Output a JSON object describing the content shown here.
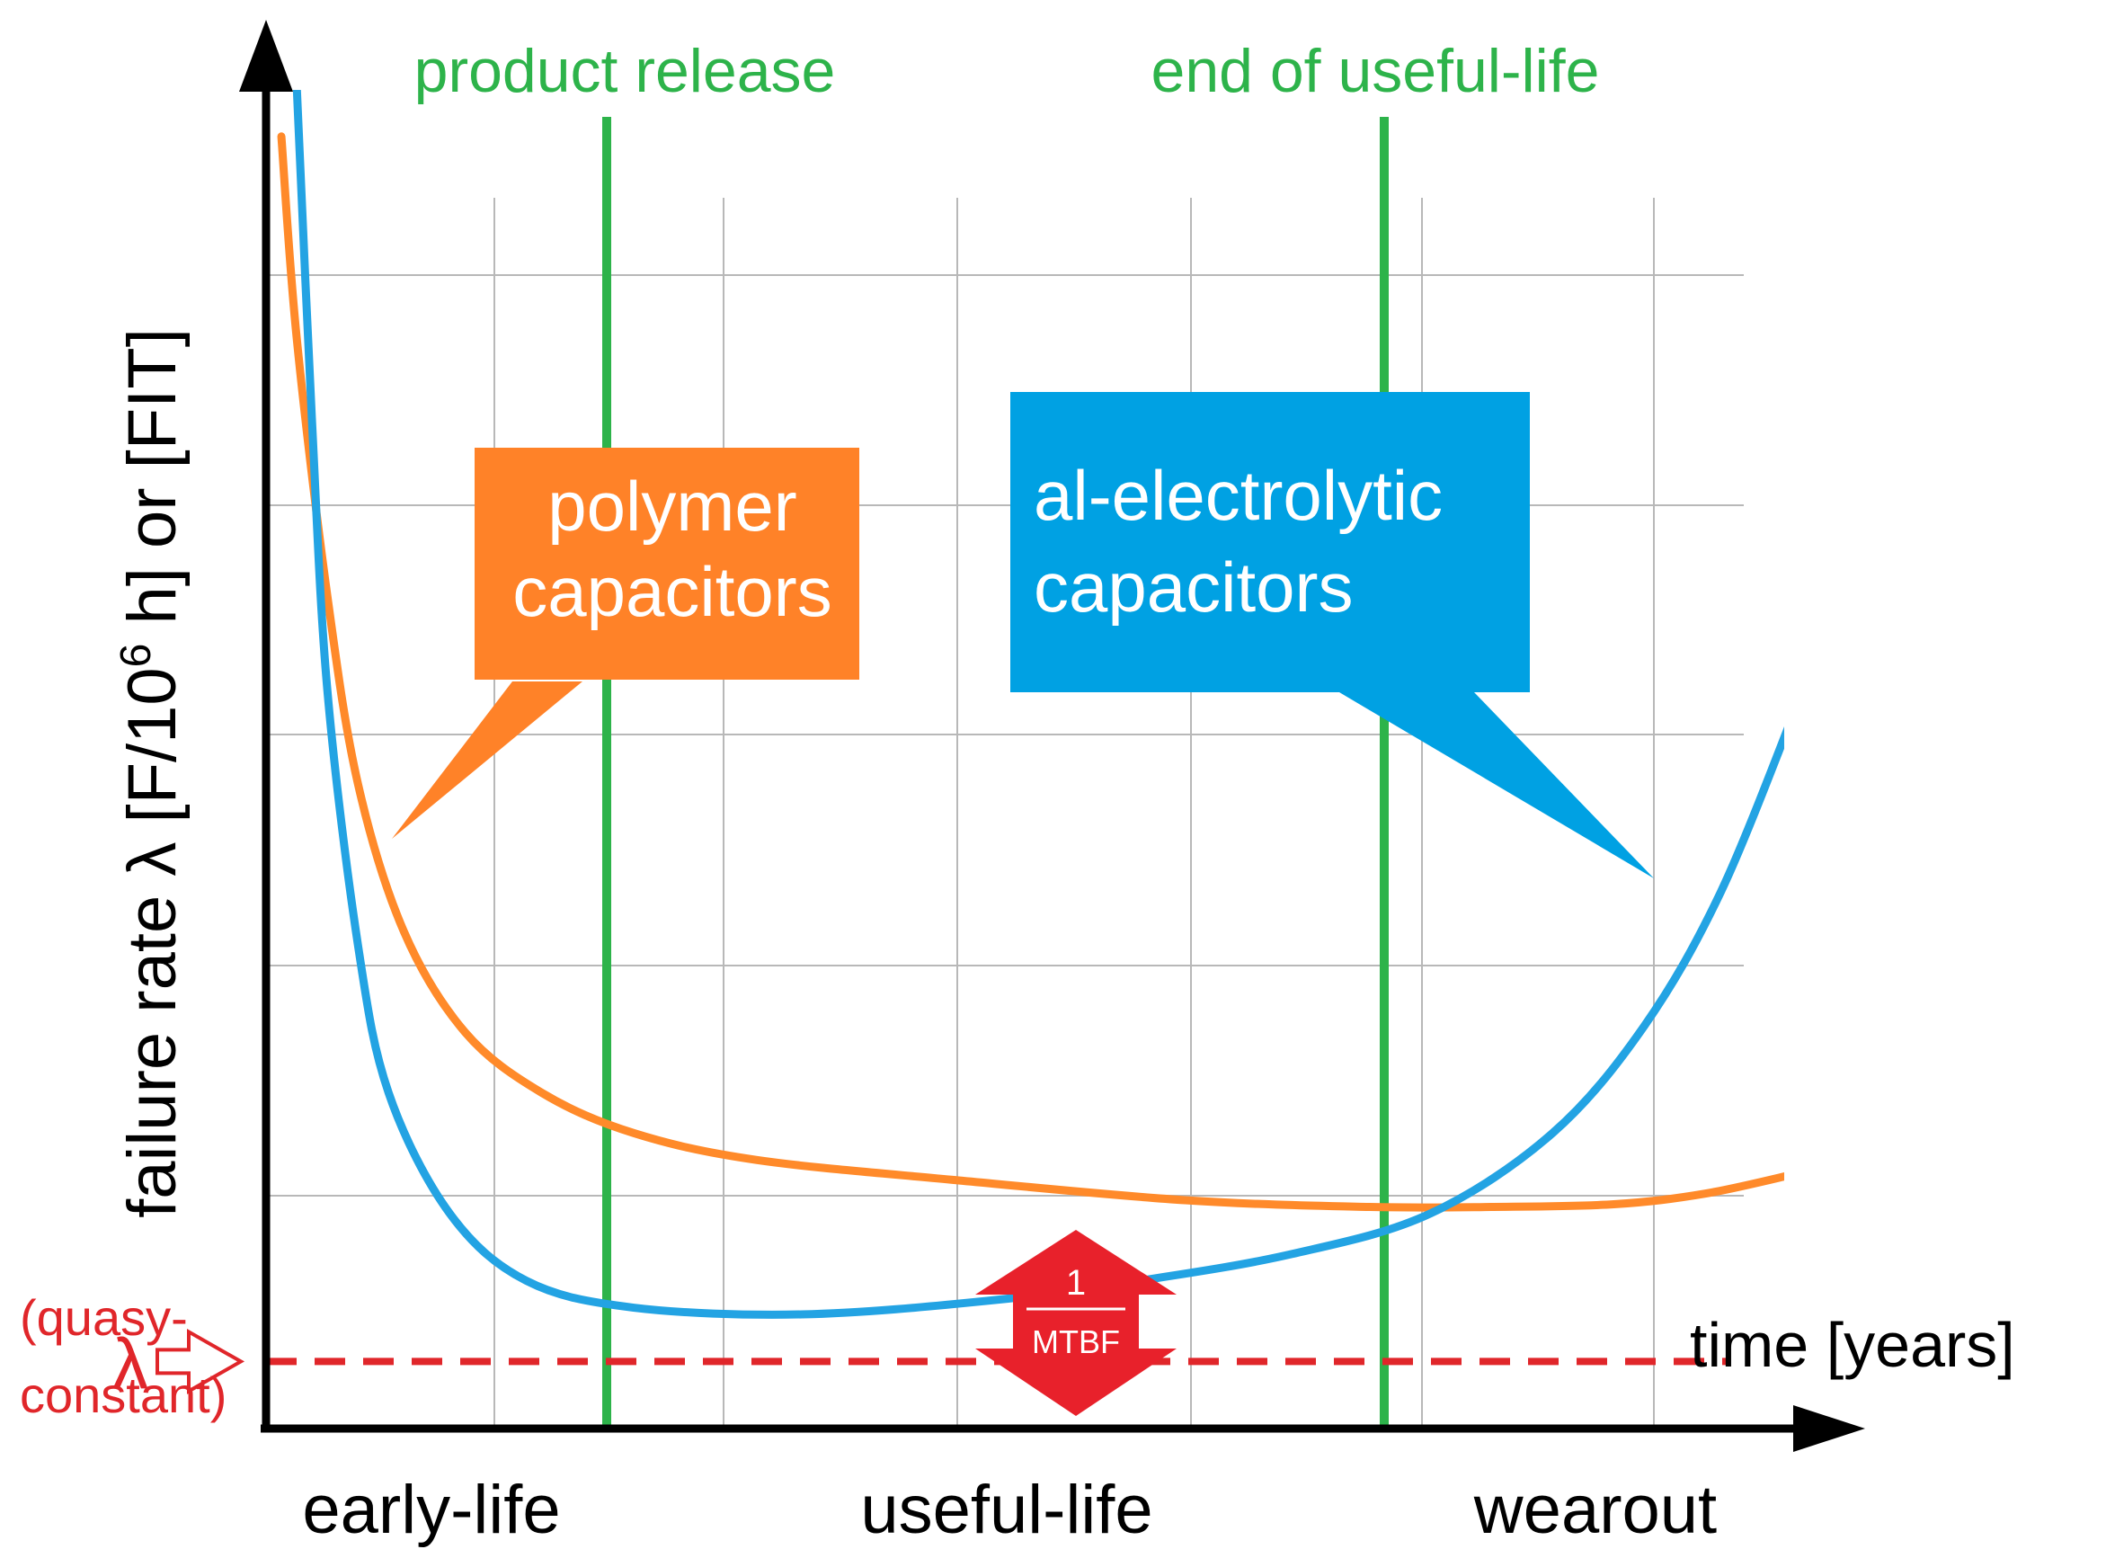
{
  "chart_data": {
    "type": "line",
    "title": "",
    "xlabel": "time [years]",
    "ylabel": "failure rate λ [F/10",
    "ylabel_sup": "6",
    "ylabel_tail": " h] or [FIT]",
    "grid": true,
    "x_tick_labels": [],
    "y_tick_labels": [],
    "phases": [
      "early-life",
      "useful-life",
      "wearout"
    ],
    "markers": [
      {
        "label": "product release",
        "color": "#2db34a"
      },
      {
        "label": "end of useful-life",
        "color": "#2db34a"
      }
    ],
    "series": [
      {
        "name": "polymer capacitors",
        "color": "#ff8a2a",
        "callout_color": "#ff8228",
        "label_lines": [
          "polymer",
          "capacitors"
        ],
        "values": [
          [
            0.01,
            0.962
          ],
          [
            0.02,
            0.812
          ],
          [
            0.04,
            0.62
          ],
          [
            0.06,
            0.48
          ],
          [
            0.09,
            0.37
          ],
          [
            0.13,
            0.295
          ],
          [
            0.18,
            0.25
          ],
          [
            0.24,
            0.22
          ],
          [
            0.32,
            0.2
          ],
          [
            0.45,
            0.185
          ],
          [
            0.6,
            0.17
          ],
          [
            0.72,
            0.165
          ],
          [
            0.8,
            0.165
          ],
          [
            0.88,
            0.167
          ],
          [
            0.94,
            0.175
          ],
          [
            1.0,
            0.19
          ]
        ]
      },
      {
        "name": "al-electrolytic capacitors",
        "color": "#23a3e3",
        "callout_color": "#00a1e3",
        "label_lines": [
          "al-electrolytic",
          "capacitors"
        ],
        "values": [
          [
            0.02,
            1.0
          ],
          [
            0.03,
            0.75
          ],
          [
            0.04,
            0.55
          ],
          [
            0.06,
            0.36
          ],
          [
            0.08,
            0.25
          ],
          [
            0.12,
            0.16
          ],
          [
            0.17,
            0.11
          ],
          [
            0.24,
            0.09
          ],
          [
            0.35,
            0.085
          ],
          [
            0.47,
            0.095
          ],
          [
            0.57,
            0.11
          ],
          [
            0.67,
            0.13
          ],
          [
            0.76,
            0.16
          ],
          [
            0.84,
            0.22
          ],
          [
            0.9,
            0.3
          ],
          [
            0.95,
            0.4
          ],
          [
            1.0,
            0.54
          ]
        ]
      }
    ],
    "reference_line": {
      "symbol": "λ",
      "note_lines": [
        "(quasy-",
        "constant)"
      ],
      "color": "#e0262a",
      "value": 0.07
    },
    "mtbf_marker": {
      "numerator": "1",
      "denominator": "MTBF",
      "color": "#e8212b"
    }
  }
}
